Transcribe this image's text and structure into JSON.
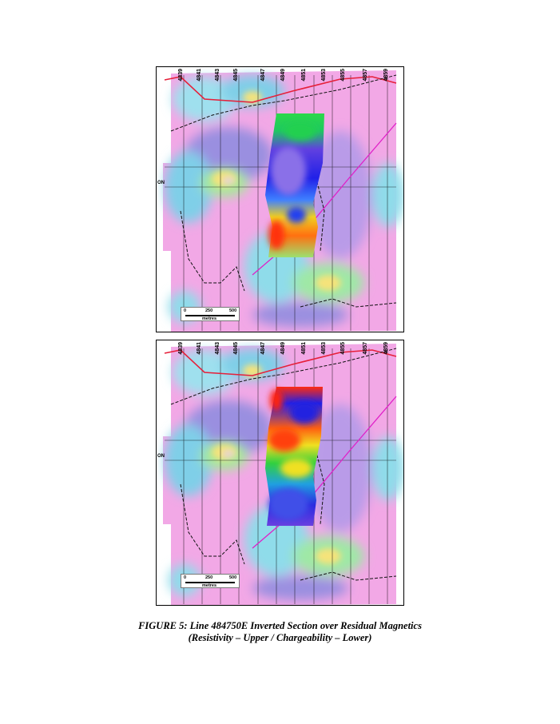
{
  "figure": {
    "title": "FIGURE 5: Line 484750E Inverted Section over Residual Magnetics",
    "subtitle": "(Resistivity – Upper / Chargeability – Lower)"
  },
  "maps": [
    {
      "panel": "upper",
      "section_type": "resistivity",
      "tick_labels": [
        "4839",
        "4841",
        "4843",
        "4845",
        "4847",
        "4849",
        "4851",
        "4853",
        "4855",
        "4857",
        "4859"
      ],
      "edge_label": "ON",
      "scale": {
        "labels": [
          "0",
          "250",
          "500"
        ],
        "units": "metres"
      }
    },
    {
      "panel": "lower",
      "section_type": "chargeability",
      "tick_labels": [
        "4839",
        "4841",
        "4843",
        "4845",
        "4847",
        "4849",
        "4851",
        "4853",
        "4855",
        "4857",
        "4859"
      ],
      "edge_label": "ON",
      "scale": {
        "labels": [
          "0",
          "250",
          "500"
        ],
        "units": "metres"
      }
    }
  ],
  "colors": {
    "mag_background": "#f2a8e6",
    "mag_low": "#9a8fe0",
    "mag_mid": "#7fd0e8",
    "mag_high": "#f5e37a",
    "road": "#e6203a",
    "survey_line": "#e020c8",
    "claim_boundary": "#111111",
    "section_low": "#1e1ee0",
    "section_high": "#ff2a10"
  }
}
